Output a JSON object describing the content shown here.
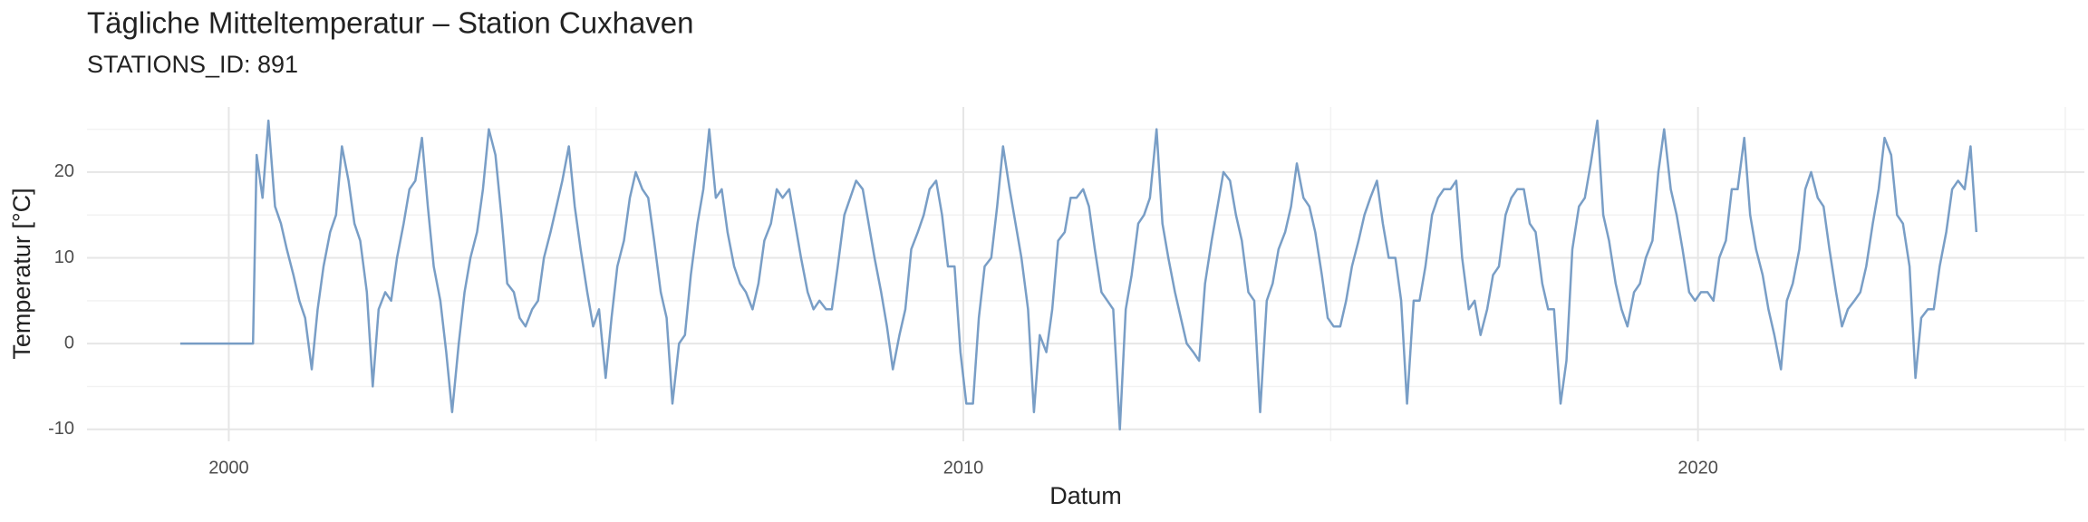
{
  "chart_data": {
    "type": "line",
    "title": "Tägliche Mitteltemperatur – Station Cuxhaven",
    "subtitle": "STATIONS_ID: 891",
    "x_label": "Datum",
    "y_label": "Temperatur [°C]",
    "color": "#6a93c0",
    "xlim": [
      1998.07,
      2025.26
    ],
    "xticks": [
      2000,
      2010,
      2020
    ],
    "xminor": [
      2005,
      2015,
      2025
    ],
    "ylim": [
      -11.4,
      27.6
    ],
    "yticks": [
      -10,
      0,
      10,
      20
    ],
    "yminor": [
      -5,
      5,
      15,
      25
    ],
    "grid": true,
    "x": [
      1999.34,
      2000.33,
      2000.38,
      2000.46,
      2000.54,
      2000.63,
      2000.71,
      2000.79,
      2000.88,
      2000.96,
      2001.04,
      2001.13,
      2001.21,
      2001.29,
      2001.38,
      2001.46,
      2001.54,
      2001.63,
      2001.71,
      2001.79,
      2001.88,
      2001.96,
      2002.04,
      2002.13,
      2002.21,
      2002.29,
      2002.38,
      2002.46,
      2002.54,
      2002.63,
      2002.71,
      2002.79,
      2002.88,
      2002.96,
      2003.04,
      2003.13,
      2003.21,
      2003.29,
      2003.38,
      2003.46,
      2003.54,
      2003.63,
      2003.71,
      2003.79,
      2003.88,
      2003.96,
      2004.04,
      2004.13,
      2004.21,
      2004.29,
      2004.38,
      2004.46,
      2004.54,
      2004.63,
      2004.71,
      2004.79,
      2004.88,
      2004.96,
      2005.04,
      2005.13,
      2005.21,
      2005.29,
      2005.38,
      2005.46,
      2005.54,
      2005.63,
      2005.71,
      2005.79,
      2005.88,
      2005.96,
      2006.04,
      2006.13,
      2006.21,
      2006.29,
      2006.38,
      2006.46,
      2006.54,
      2006.63,
      2006.71,
      2006.79,
      2006.88,
      2006.96,
      2007.04,
      2007.13,
      2007.21,
      2007.29,
      2007.38,
      2007.46,
      2007.54,
      2007.63,
      2007.71,
      2007.79,
      2007.88,
      2007.96,
      2008.04,
      2008.13,
      2008.21,
      2008.29,
      2008.38,
      2008.46,
      2008.54,
      2008.63,
      2008.71,
      2008.79,
      2008.88,
      2008.96,
      2009.04,
      2009.13,
      2009.21,
      2009.29,
      2009.38,
      2009.46,
      2009.54,
      2009.63,
      2009.71,
      2009.79,
      2009.88,
      2009.96,
      2010.04,
      2010.13,
      2010.21,
      2010.29,
      2010.38,
      2010.46,
      2010.54,
      2010.63,
      2010.71,
      2010.79,
      2010.88,
      2010.96,
      2011.04,
      2011.13,
      2011.21,
      2011.29,
      2011.38,
      2011.46,
      2011.54,
      2011.63,
      2011.71,
      2011.79,
      2011.88,
      2011.96,
      2012.04,
      2012.13,
      2012.21,
      2012.29,
      2012.38,
      2012.46,
      2012.54,
      2012.63,
      2012.71,
      2012.79,
      2012.88,
      2012.96,
      2013.04,
      2013.13,
      2013.21,
      2013.29,
      2013.38,
      2013.46,
      2013.54,
      2013.63,
      2013.71,
      2013.79,
      2013.88,
      2013.96,
      2014.04,
      2014.13,
      2014.21,
      2014.29,
      2014.38,
      2014.46,
      2014.54,
      2014.63,
      2014.71,
      2014.79,
      2014.88,
      2014.96,
      2015.04,
      2015.13,
      2015.21,
      2015.29,
      2015.38,
      2015.46,
      2015.54,
      2015.63,
      2015.71,
      2015.79,
      2015.88,
      2015.96,
      2016.04,
      2016.13,
      2016.21,
      2016.29,
      2016.38,
      2016.46,
      2016.54,
      2016.63,
      2016.71,
      2016.79,
      2016.88,
      2016.96,
      2017.04,
      2017.13,
      2017.21,
      2017.29,
      2017.38,
      2017.46,
      2017.54,
      2017.63,
      2017.71,
      2017.79,
      2017.88,
      2017.96,
      2018.04,
      2018.13,
      2018.21,
      2018.29,
      2018.38,
      2018.46,
      2018.54,
      2018.63,
      2018.71,
      2018.79,
      2018.88,
      2018.96,
      2019.04,
      2019.13,
      2019.21,
      2019.29,
      2019.38,
      2019.46,
      2019.54,
      2019.63,
      2019.71,
      2019.79,
      2019.88,
      2019.96,
      2020.04,
      2020.13,
      2020.21,
      2020.29,
      2020.38,
      2020.46,
      2020.54,
      2020.63,
      2020.71,
      2020.79,
      2020.88,
      2020.96,
      2021.04,
      2021.13,
      2021.21,
      2021.29,
      2021.38,
      2021.46,
      2021.54,
      2021.63,
      2021.71,
      2021.79,
      2021.88,
      2021.96,
      2022.04,
      2022.13,
      2022.21,
      2022.29,
      2022.38,
      2022.46,
      2022.54,
      2022.63,
      2022.71,
      2022.79,
      2022.88,
      2022.96,
      2023.04,
      2023.13,
      2023.21,
      2023.29,
      2023.38,
      2023.46,
      2023.54,
      2023.63,
      2023.71,
      2023.79
    ],
    "values": [
      0,
      0,
      22,
      17,
      26,
      16,
      14,
      11,
      8,
      5,
      3,
      -3,
      4,
      9,
      13,
      15,
      23,
      19,
      14,
      12,
      6,
      -5,
      4,
      6,
      5,
      10,
      14,
      18,
      19,
      24,
      16,
      9,
      5,
      -1,
      -8,
      0,
      6,
      10,
      13,
      18,
      25,
      22,
      15,
      7,
      6,
      3,
      2,
      4,
      5,
      10,
      13,
      16,
      19,
      23,
      16,
      11,
      6,
      2,
      4,
      -4,
      3,
      9,
      12,
      17,
      20,
      18,
      17,
      12,
      6,
      3,
      -7,
      0,
      1,
      8,
      14,
      18,
      25,
      17,
      18,
      13,
      9,
      7,
      6,
      4,
      7,
      12,
      14,
      18,
      17,
      18,
      14,
      10,
      6,
      4,
      5,
      4,
      4,
      9,
      15,
      17,
      19,
      18,
      14,
      10,
      6,
      2,
      -3,
      1,
      4,
      11,
      13,
      15,
      18,
      19,
      15,
      9,
      9,
      -1,
      -7,
      -7,
      3,
      9,
      10,
      16,
      23,
      18,
      14,
      10,
      4,
      -8,
      1,
      -1,
      4,
      12,
      13,
      17,
      17,
      18,
      16,
      11,
      6,
      5,
      4,
      -10,
      4,
      8,
      14,
      15,
      17,
      25,
      14,
      10,
      6,
      3,
      0,
      -1,
      -2,
      7,
      12,
      16,
      20,
      19,
      15,
      12,
      6,
      5,
      -8,
      5,
      7,
      11,
      13,
      16,
      21,
      17,
      16,
      13,
      8,
      3,
      2,
      2,
      5,
      9,
      12,
      15,
      17,
      19,
      14,
      10,
      10,
      5,
      -7,
      5,
      5,
      9,
      15,
      17,
      18,
      18,
      19,
      10,
      4,
      5,
      1,
      4,
      8,
      9,
      15,
      17,
      18,
      18,
      14,
      13,
      7,
      4,
      4,
      -7,
      -2,
      11,
      16,
      17,
      21,
      26,
      15,
      12,
      7,
      4,
      2,
      6,
      7,
      10,
      12,
      20,
      25,
      18,
      15,
      11,
      6,
      5,
      6,
      6,
      5,
      10,
      12,
      18,
      18,
      24,
      15,
      11,
      8,
      4,
      1,
      -3,
      5,
      7,
      11,
      18,
      20,
      17,
      16,
      11,
      6,
      2,
      4,
      5,
      6,
      9,
      14,
      18,
      24,
      22,
      15,
      14,
      9,
      -4,
      3,
      4,
      4,
      9,
      13,
      18,
      19,
      18,
      23,
      13
    ]
  }
}
